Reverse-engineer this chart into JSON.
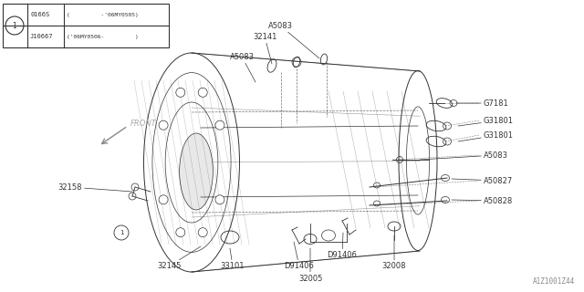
{
  "bg_color": "#ffffff",
  "line_color": "#333333",
  "watermark": "A1Z1001Z44",
  "table": {
    "circle_label": "1",
    "rows": [
      {
        "code": "0166S",
        "range": "(         -'06MY0505)"
      },
      {
        "code": "J10667",
        "range": "('06MY0506-         )"
      }
    ]
  },
  "figsize": [
    6.4,
    3.2
  ],
  "dpi": 100
}
